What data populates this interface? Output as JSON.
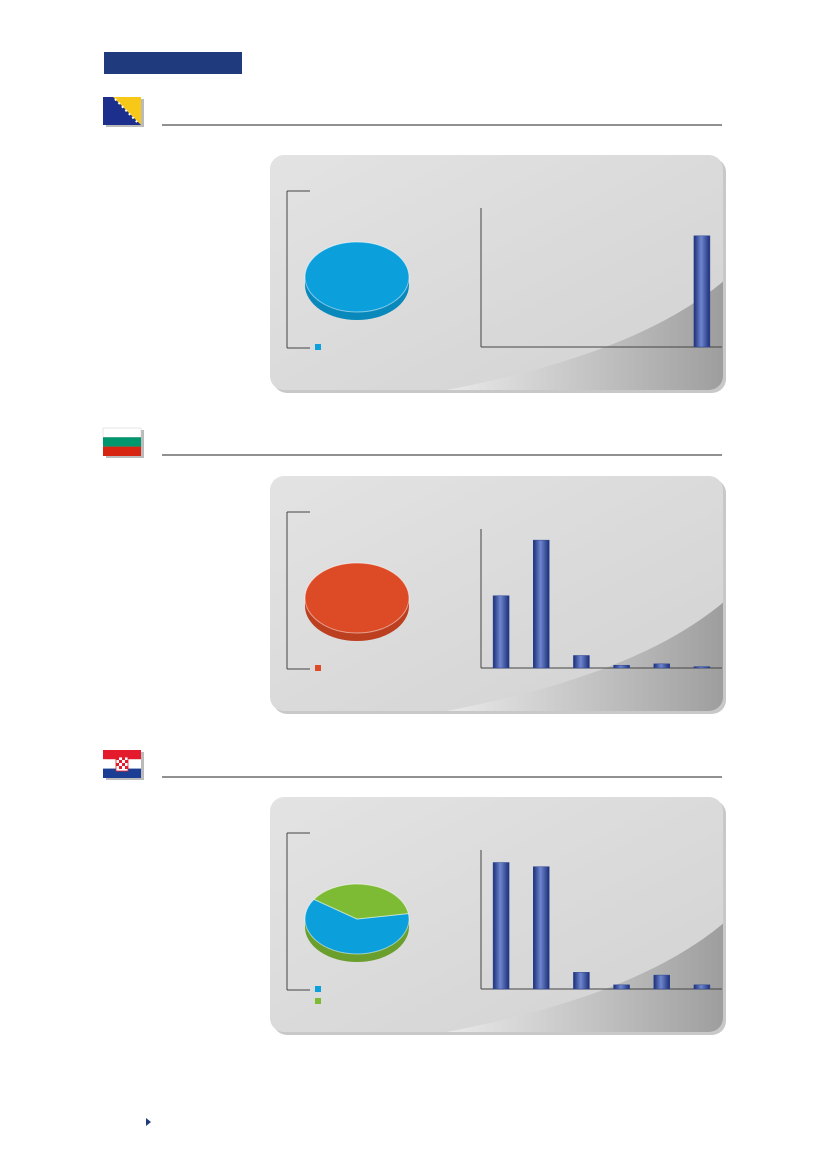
{
  "chart_data": [
    {
      "type": "pie",
      "values": [
        100
      ],
      "colors": [
        "#0ba0dc"
      ]
    },
    {
      "type": "bar",
      "categories": [
        null,
        null,
        null,
        null,
        null,
        null
      ],
      "values": [
        0,
        0,
        0,
        0,
        0,
        80
      ],
      "color": "#2c4593",
      "ylim": [
        0,
        100
      ]
    },
    {
      "type": "pie",
      "values": [
        100
      ],
      "colors": [
        "#dd4a26"
      ]
    },
    {
      "type": "bar",
      "categories": [
        null,
        null,
        null,
        null,
        null,
        null
      ],
      "values": [
        52,
        92,
        9,
        2,
        3,
        1
      ],
      "color": "#2c4593",
      "ylim": [
        0,
        100
      ]
    },
    {
      "type": "pie",
      "values": [
        62,
        38
      ],
      "colors": [
        "#0ba0dc",
        "#7dbb35"
      ]
    },
    {
      "type": "bar",
      "categories": [
        null,
        null,
        null,
        null,
        null,
        null
      ],
      "values": [
        91,
        88,
        12,
        3,
        10,
        3
      ],
      "color": "#2c4593",
      "ylim": [
        0,
        100
      ]
    }
  ]
}
